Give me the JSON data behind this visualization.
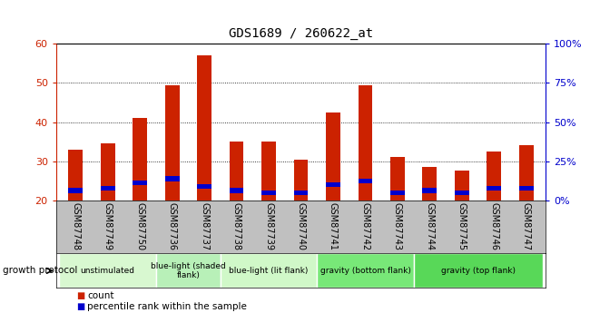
{
  "title": "GDS1689 / 260622_at",
  "samples": [
    "GSM87748",
    "GSM87749",
    "GSM87750",
    "GSM87736",
    "GSM87737",
    "GSM87738",
    "GSM87739",
    "GSM87740",
    "GSM87741",
    "GSM87742",
    "GSM87743",
    "GSM87744",
    "GSM87745",
    "GSM87746",
    "GSM87747"
  ],
  "count_values": [
    33,
    34.5,
    41,
    49.5,
    57,
    35,
    35,
    30.5,
    42.5,
    49.5,
    31,
    28.5,
    27.5,
    32.5,
    34
  ],
  "percentile_values": [
    22.5,
    23,
    24.5,
    25.5,
    23.5,
    22.5,
    22,
    22,
    24,
    25,
    22,
    22.5,
    22,
    23,
    23
  ],
  "blue_bar_height": 1.2,
  "ymin": 20,
  "ymax": 60,
  "yticks_left": [
    20,
    30,
    40,
    50,
    60
  ],
  "yticks_right": [
    0,
    25,
    50,
    75,
    100
  ],
  "groups": [
    {
      "label": "unstimulated",
      "start": 0,
      "end": 3,
      "color": "#d8f8d0"
    },
    {
      "label": "blue-light (shaded\nflank)",
      "start": 3,
      "end": 5,
      "color": "#b8f0b8"
    },
    {
      "label": "blue-light (lit flank)",
      "start": 5,
      "end": 8,
      "color": "#d0f8c8"
    },
    {
      "label": "gravity (bottom flank)",
      "start": 8,
      "end": 11,
      "color": "#78e878"
    },
    {
      "label": "gravity (top flank)",
      "start": 11,
      "end": 15,
      "color": "#58d858"
    }
  ],
  "bar_width": 0.45,
  "tick_area_bg": "#c0c0c0",
  "red_color": "#cc2200",
  "blue_color": "#0000cc",
  "legend_red": "count",
  "legend_blue": "percentile rank within the sample",
  "growth_protocol_label": "growth protocol",
  "figsize": [
    6.5,
    3.45
  ],
  "dpi": 100
}
